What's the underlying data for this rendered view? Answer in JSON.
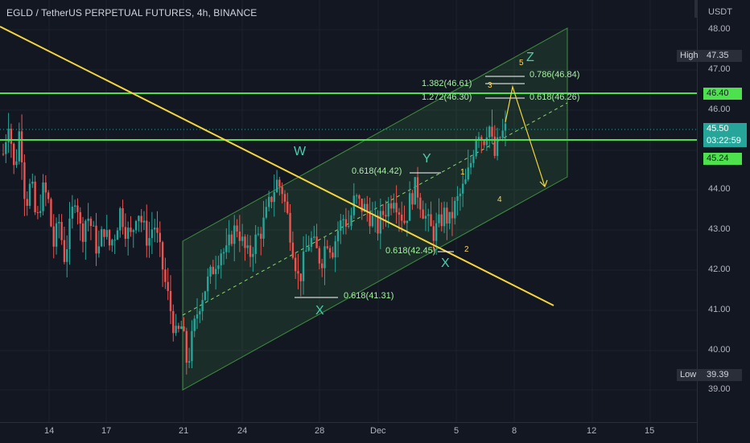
{
  "header": {
    "title": "EGLD / TetherUS PERPETUAL FUTURES, 4h, BINANCE"
  },
  "price_scale": {
    "currency": "USDT",
    "ticks": [
      "48.00",
      "47.00",
      "46.00",
      "45.00",
      "44.00",
      "43.00",
      "42.00",
      "41.00",
      "40.00",
      "39.00"
    ],
    "high_label": "High",
    "high_value": "47.35",
    "low_label": "Low",
    "low_value": "39.39",
    "level_upper": "46.40",
    "last_price": "45.50",
    "countdown": "03:22:59",
    "level_lower": "45.24"
  },
  "time_axis": {
    "ticks": [
      "14",
      "17",
      "21",
      "24",
      "28",
      "Dec",
      "5",
      "8",
      "12",
      "15"
    ]
  },
  "annotations": {
    "fib_w": "0.618(44.42)",
    "fib_x1": "0.618(41.31)",
    "fib_x2": "0.618(42.45)",
    "fib_1382": "1.382(46.61)",
    "fib_1272": "1.272(46.30)",
    "fib_0786": "0.786(46.84)",
    "fib_0618": "0.618(46.26)",
    "wave_w": "W",
    "wave_x1": "X",
    "wave_y": "Y",
    "wave_x2": "X",
    "wave_z": "Z",
    "n1": "1",
    "n2": "2",
    "n3": "3",
    "n4": "4",
    "n5": "5"
  },
  "colors": {
    "background": "#131722",
    "bull": "#26a69a",
    "bear": "#ef5350",
    "trendline": "#f5d63d",
    "horizontal_levels": "#4ee14e",
    "channel": "#3f8f3f"
  },
  "chart_data": {
    "type": "candlestick",
    "symbol": "EGLD/USDT perpetual",
    "timeframe": "4h",
    "y_range": [
      38.6,
      48.5
    ],
    "horizontal_levels": [
      46.4,
      45.24
    ],
    "high": 47.35,
    "low": 39.39,
    "last": 45.5,
    "path_points": [
      [
        44.9,
        45.8,
        44.4,
        45.6,
        43.6,
        44.2,
        43.1,
        44.0,
        43.8,
        42.6,
        43.2,
        42.3,
        43.1,
        44.0,
        42.8,
        43.4,
        43.0,
        42.4,
        43.1,
        42.6
      ],
      [
        42.9,
        43.5,
        43.0,
        42.8,
        43.6,
        43.1,
        42.7,
        43.2,
        42.5,
        41.7,
        41.0,
        40.3,
        40.6,
        39.6,
        40.4,
        41.1,
        41.5,
        41.8,
        42.2,
        42.5
      ],
      [
        42.4,
        42.9,
        43.1,
        42.6,
        42.3,
        42.7,
        42.9,
        43.3,
        43.8,
        44.2,
        44.0,
        43.3,
        42.5,
        41.7,
        42.3,
        42.8,
        42.5,
        42.2,
        42.8,
        42.5
      ],
      [
        43.0,
        43.3,
        43.1,
        43.8,
        43.6,
        43.5,
        43.3,
        43.0,
        43.4,
        43.6,
        43.9,
        43.5,
        43.2,
        43.8,
        44.1,
        43.6,
        43.2,
        42.9,
        43.1,
        43.4
      ],
      [
        43.2,
        43.6,
        43.9,
        44.2,
        44.8,
        45.6,
        45.2,
        45.7,
        44.8,
        45.3,
        45.5
      ]
    ]
  }
}
